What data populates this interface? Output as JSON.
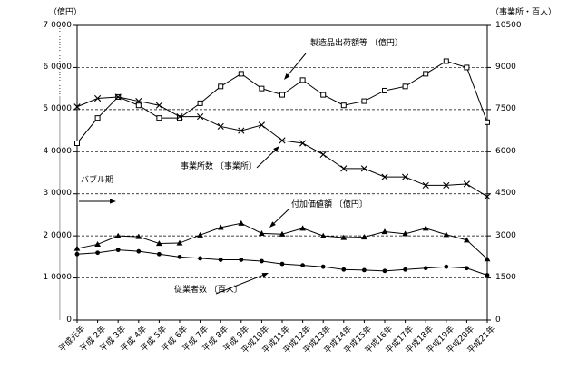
{
  "chart_data": {
    "type": "line",
    "title": "",
    "left_axis": {
      "title": "（億円）",
      "min": 0,
      "max": 70000,
      "tick_labels": [
        "7 0000",
        "6 0000",
        "5 0000",
        "4 0000",
        "3 0000",
        "2 0000",
        "1 0000",
        "0"
      ],
      "grid": "dashed horizontal lines at every 10000 (left) / 1500 (right)"
    },
    "right_axis": {
      "title": "（事業所・百人）",
      "min": 0,
      "max": 10500,
      "tick_labels": [
        "10500",
        "9000",
        "7500",
        "6000",
        "4500",
        "3000",
        "1500",
        "0"
      ]
    },
    "categories": [
      "平成元年",
      "平成 2年",
      "平成 3年",
      "平成 4年",
      "平成 5年",
      "平成 6年",
      "平成 7年",
      "平成 8年",
      "平成 9年",
      "平成10年",
      "平成11年",
      "平成12年",
      "平成13年",
      "平成14年",
      "平成15年",
      "平成16年",
      "平成17年",
      "平成18年",
      "平成19年",
      "平成20年",
      "平成21年"
    ],
    "series": [
      {
        "name": "製造品出荷額等〔億円〕",
        "axis": "left",
        "marker": "square",
        "values": [
          42000,
          48000,
          53000,
          51000,
          48000,
          48000,
          51500,
          55500,
          58500,
          55000,
          53500,
          57000,
          53500,
          51000,
          52000,
          54500,
          55500,
          58500,
          61500,
          60000,
          47000
        ]
      },
      {
        "name": "事業所数〔事業所〕",
        "axis": "right",
        "marker": "x",
        "values": [
          7600,
          7900,
          7950,
          7800,
          7650,
          7250,
          7250,
          6900,
          6750,
          6950,
          6400,
          6300,
          5900,
          5400,
          5400,
          5100,
          5100,
          4800,
          4800,
          4850,
          4400
        ]
      },
      {
        "name": "付加価値額〔億円〕",
        "axis": "left",
        "marker": "triangle",
        "values": [
          17000,
          18000,
          20000,
          19800,
          18200,
          18300,
          20200,
          22000,
          23000,
          20600,
          20400,
          21800,
          20000,
          19600,
          19700,
          21000,
          20500,
          21800,
          20300,
          19000,
          14500
        ]
      },
      {
        "name": "従業者数〔百人〕",
        "axis": "right",
        "marker": "circle",
        "values": [
          2350,
          2400,
          2500,
          2450,
          2350,
          2250,
          2200,
          2150,
          2150,
          2100,
          2000,
          1950,
          1900,
          1800,
          1780,
          1750,
          1800,
          1850,
          1900,
          1850,
          1600
        ]
      }
    ],
    "annotations": [
      {
        "id": "shipments",
        "text": "製造品出荷額等 〔億円〕"
      },
      {
        "id": "establishments",
        "text": "事業所数 〔事業所〕"
      },
      {
        "id": "value-added",
        "text": "付加価値額 〔億円〕"
      },
      {
        "id": "employees",
        "text": "従業者数 〔百人〕"
      },
      {
        "id": "bubble-period",
        "text": "バブル期"
      }
    ],
    "bubble_period_line_category": "平成3年",
    "legend_position": "none (labels are arrow callouts inside plot)",
    "colors": {
      "line": "#000000",
      "marker_fill": "#000000",
      "square_fill": "#ffffff",
      "bubble_line": "#999999"
    }
  }
}
